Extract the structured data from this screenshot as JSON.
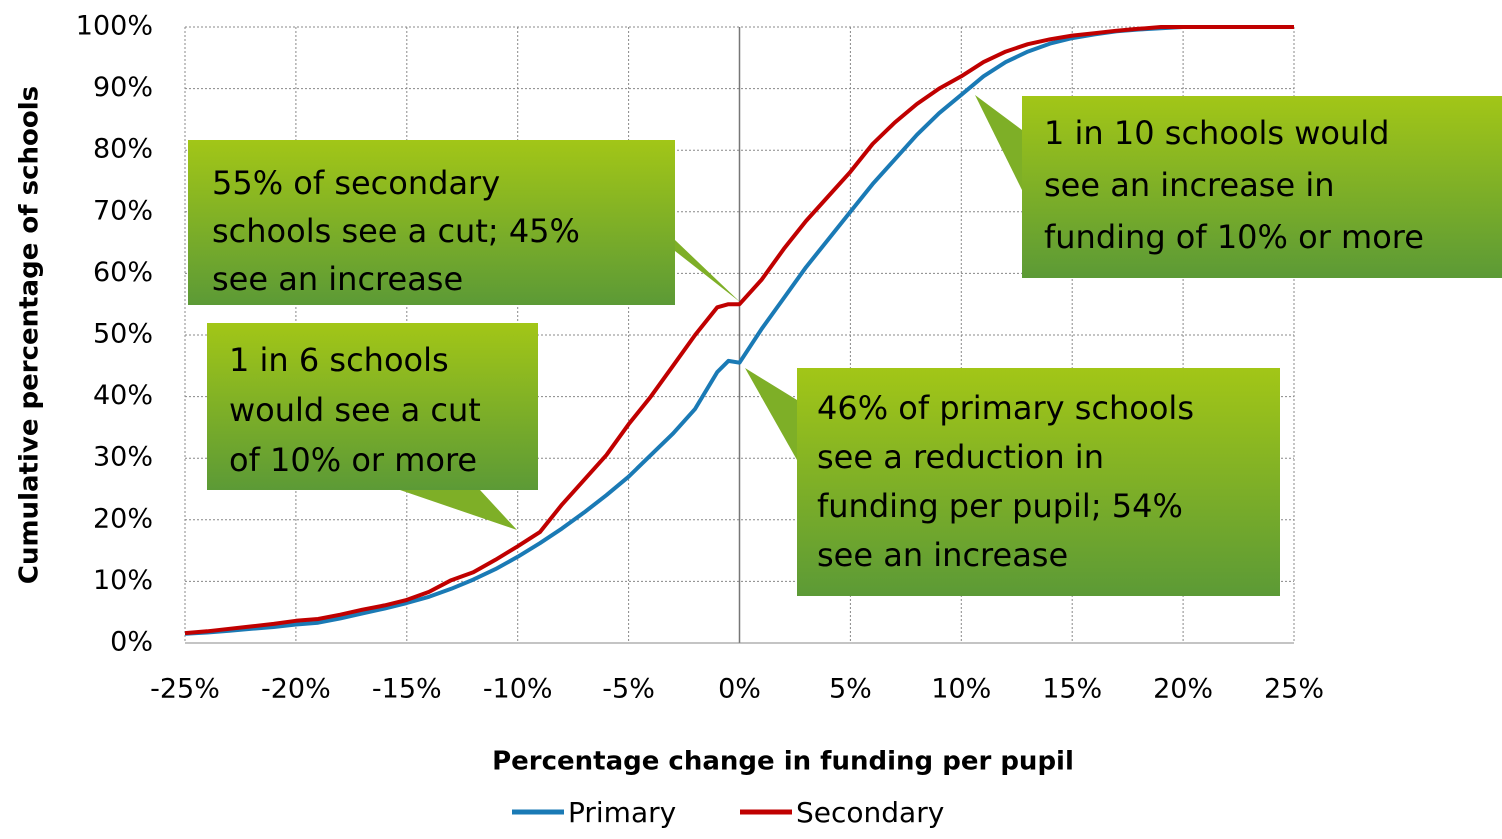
{
  "chart_data": {
    "type": "line",
    "xlabel": "Percentage change in funding per pupil",
    "ylabel": "Cumulative percentage of schools",
    "x": [
      -25,
      -24,
      -23,
      -22,
      -21,
      -20,
      -19,
      -18,
      -17,
      -16,
      -15,
      -14,
      -13,
      -12,
      -11,
      -10,
      -9,
      -8,
      -7,
      -6,
      -5,
      -4,
      -3,
      -2,
      -1,
      -0.5,
      0,
      1,
      2,
      3,
      4,
      5,
      6,
      7,
      8,
      9,
      10,
      11,
      12,
      13,
      14,
      15,
      16,
      17,
      18,
      19,
      20,
      25
    ],
    "series": [
      {
        "name": "Primary",
        "color": "#1a7ab5",
        "values": [
          1.5,
          1.7,
          2,
          2.3,
          2.6,
          3,
          3.3,
          4,
          4.8,
          5.6,
          6.5,
          7.5,
          8.8,
          10.3,
          12,
          14,
          16.2,
          18.6,
          21.2,
          24,
          27,
          30.5,
          34,
          38,
          44,
          45.8,
          45.5,
          51,
          56,
          61,
          65.5,
          70,
          74.5,
          78.5,
          82.5,
          86,
          89,
          92,
          94.3,
          96,
          97.3,
          98.2,
          98.8,
          99.3,
          99.6,
          99.8,
          100,
          100
        ]
      },
      {
        "name": "Secondary",
        "color": "#c00000",
        "values": [
          1.6,
          1.9,
          2.3,
          2.7,
          3.1,
          3.6,
          3.9,
          4.6,
          5.4,
          6.1,
          7,
          8.3,
          10.2,
          11.5,
          13.5,
          15.7,
          18,
          22.5,
          26.5,
          30.5,
          35.5,
          40,
          45,
          50,
          54.5,
          55,
          55,
          59,
          64,
          68.5,
          72.5,
          76.5,
          81,
          84.5,
          87.5,
          90,
          92,
          94.3,
          96,
          97.2,
          98,
          98.6,
          99,
          99.4,
          99.7,
          100,
          100,
          100
        ]
      }
    ],
    "xlim": [
      -25,
      25
    ],
    "xticks": [
      {
        "value": -25,
        "label": "-25%"
      },
      {
        "value": -20,
        "label": "-20%"
      },
      {
        "value": -15,
        "label": "-15%"
      },
      {
        "value": -10,
        "label": "-10%"
      },
      {
        "value": -5,
        "label": "-5%"
      },
      {
        "value": 0,
        "label": "0%"
      },
      {
        "value": 5,
        "label": "5%"
      },
      {
        "value": 10,
        "label": "10%"
      },
      {
        "value": 15,
        "label": "15%"
      },
      {
        "value": 20,
        "label": "20%"
      },
      {
        "value": 25,
        "label": "25%"
      }
    ],
    "ylim": [
      0,
      100
    ],
    "yticks": [
      {
        "value": 0,
        "label": "0%"
      },
      {
        "value": 10,
        "label": "10%"
      },
      {
        "value": 20,
        "label": "20%"
      },
      {
        "value": 30,
        "label": "30%"
      },
      {
        "value": 40,
        "label": "40%"
      },
      {
        "value": 50,
        "label": "50%"
      },
      {
        "value": 60,
        "label": "60%"
      },
      {
        "value": 70,
        "label": "70%"
      },
      {
        "value": 80,
        "label": "80%"
      },
      {
        "value": 90,
        "label": "90%"
      },
      {
        "value": 100,
        "label": "100%"
      }
    ],
    "grid": true,
    "legend": "bottom",
    "annotations": [
      {
        "lines": [
          "55% of secondary",
          "schools see a cut; 45%",
          "see an increase"
        ]
      },
      {
        "lines": [
          "1 in 6 schools",
          "would see a cut",
          "of 10% or more"
        ]
      },
      {
        "lines": [
          "1 in 10 schools would",
          "see an increase in",
          "funding of 10% or more"
        ]
      },
      {
        "lines": [
          "46% of primary schools",
          "see a reduction in",
          "funding per pupil; 54%",
          "see an increase"
        ]
      }
    ]
  }
}
